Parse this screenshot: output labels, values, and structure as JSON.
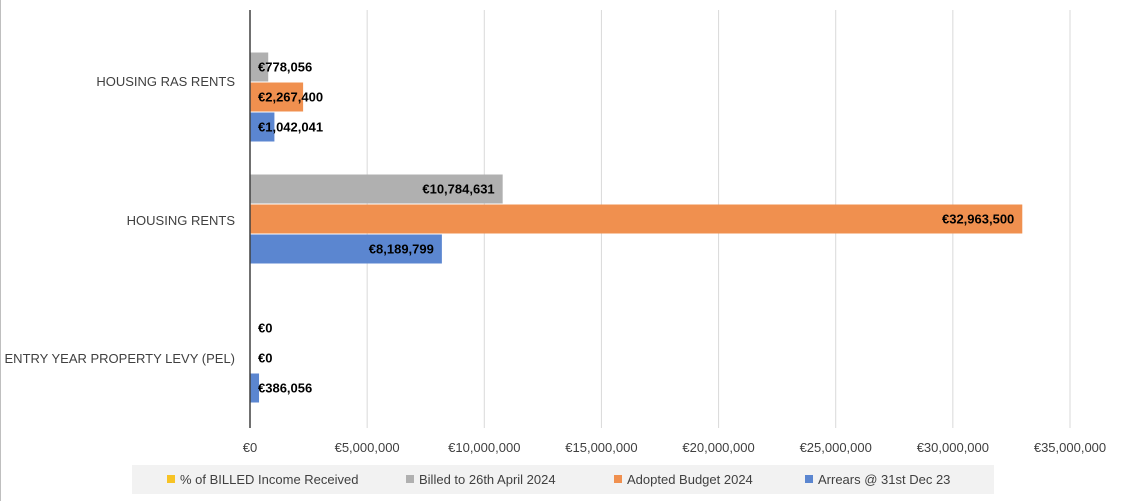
{
  "chart_data": {
    "type": "bar",
    "orientation": "horizontal",
    "title": "",
    "categories": [
      "HOUSING RAS RENTS",
      "HOUSING RENTS",
      "ENTRY YEAR PROPERTY LEVY (PEL)"
    ],
    "series": [
      {
        "name": "% of BILLED Income Received",
        "color": "#f7c325",
        "values": [
          null,
          null,
          null
        ],
        "labels": [
          "",
          "",
          ""
        ]
      },
      {
        "name": "Billed to 26th April 2024",
        "color": "#b0b0b0",
        "values": [
          778056,
          10784631,
          0
        ],
        "labels": [
          "€778,056",
          "€10,784,631",
          "€0"
        ]
      },
      {
        "name": "Adopted Budget 2024",
        "color": "#f0904f",
        "values": [
          2267400,
          32963500,
          0
        ],
        "labels": [
          "€2,267,400",
          "€32,963,500",
          "€0"
        ]
      },
      {
        "name": "Arrears @ 31st Dec 23",
        "color": "#5b86d0",
        "values": [
          1042041,
          8189799,
          386056
        ],
        "labels": [
          "€1,042,041",
          "€8,189,799",
          "€386,056"
        ]
      }
    ],
    "xlim": [
      0,
      35000000
    ],
    "x_ticks": [
      0,
      5000000,
      10000000,
      15000000,
      20000000,
      25000000,
      30000000,
      35000000
    ],
    "x_tick_labels": [
      "€0",
      "€5,000,000",
      "€10,000,000",
      "€15,000,000",
      "€20,000,000",
      "€25,000,000",
      "€30,000,000",
      "€35,000,000"
    ],
    "grid": true,
    "legend_position": "bottom",
    "xlabel": "",
    "ylabel": ""
  }
}
